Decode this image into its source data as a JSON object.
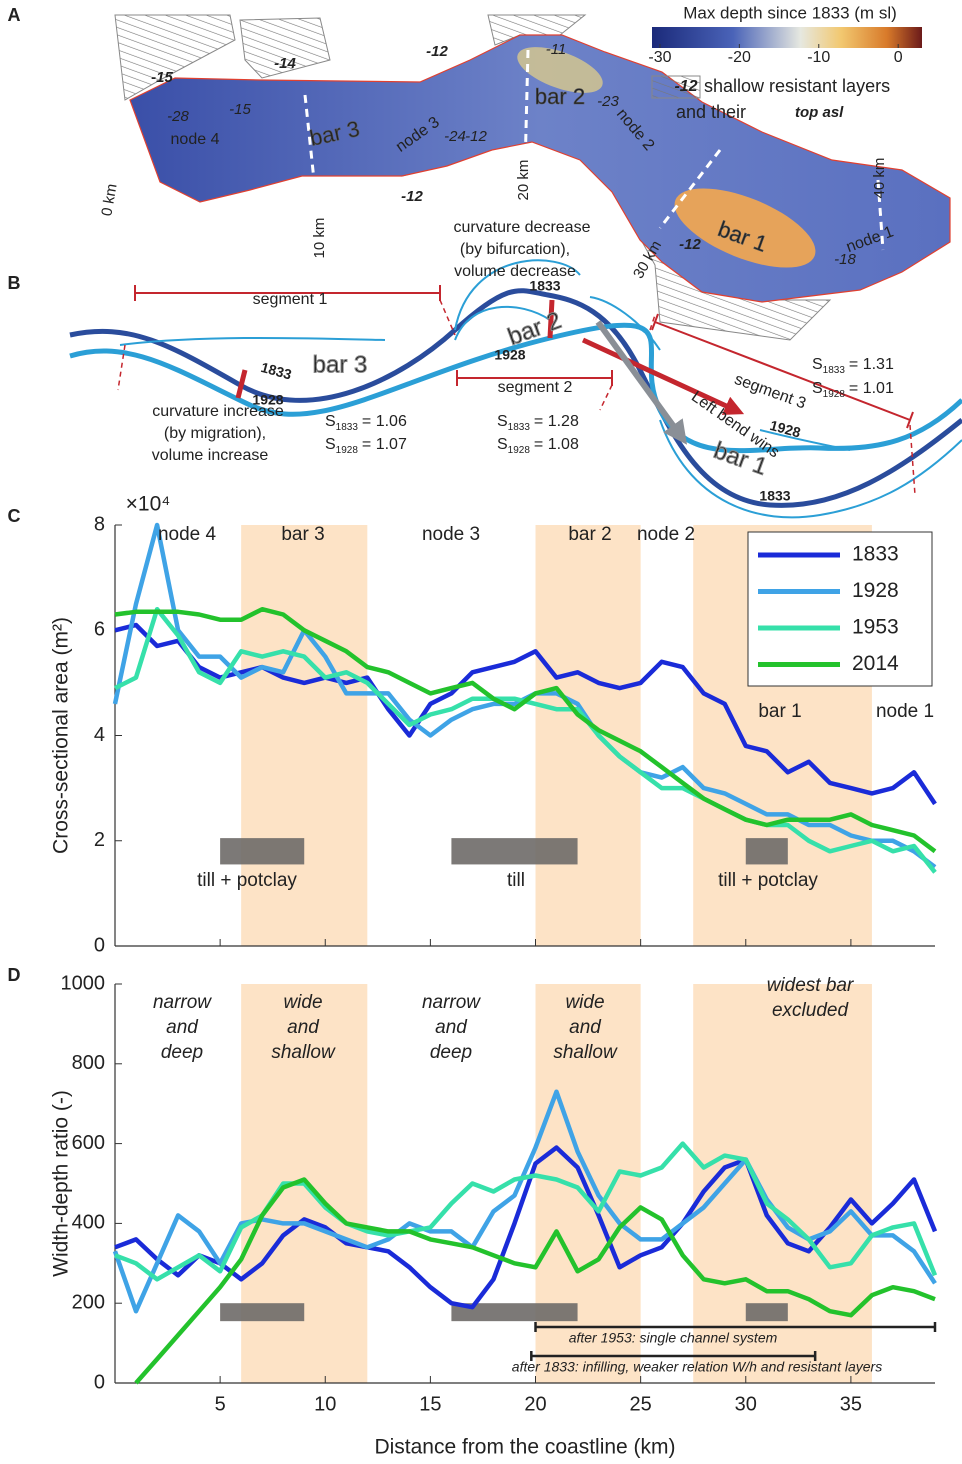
{
  "panel_a": {
    "label": "A",
    "colorbar": {
      "title": "Max depth since 1833 (m sl)",
      "lim": [
        -31,
        3
      ],
      "ticks": [
        -30,
        -20,
        -10,
        0
      ]
    },
    "legend": {
      "sample": "-12",
      "line1": "shallow resistant layers",
      "line2": "and their",
      "line2_em": "top asl"
    },
    "labels": [
      "-15",
      "-14",
      "-12",
      "-12",
      "-12",
      "-28",
      "-15",
      "-24",
      "-12",
      "-11",
      "-23",
      "-18",
      "node 4",
      "bar 3",
      "node 3",
      "bar 2",
      "node 2",
      "bar 1",
      "node 1",
      "0 km",
      "10 km",
      "20 km",
      "30 km",
      "40 km"
    ]
  },
  "panel_b": {
    "label": "B",
    "labels": [
      "segment 1",
      "segment 2",
      "segment 3",
      "bar 3",
      "bar 2",
      "bar 1",
      "1833",
      "1833",
      "1833",
      "1928",
      "1928",
      "1928",
      "curvature decrease",
      "(by bifurcation),",
      "volume decrease",
      "curvature increase",
      "(by migration),",
      "volume increase",
      "Left bend wins"
    ],
    "s_values": [
      {
        "label": "S",
        "sub": "1833",
        "rest": "= 1.06"
      },
      {
        "label": "S",
        "sub": "1928",
        "rest": "= 1.07"
      },
      {
        "label": "S",
        "sub": "1833",
        "rest": "= 1.28"
      },
      {
        "label": "S",
        "sub": "1928",
        "rest": "= 1.08"
      },
      {
        "label": "S",
        "sub": "1833",
        "rest": "= 1.31"
      },
      {
        "label": "S",
        "sub": "1928",
        "rest": "= 1.01"
      }
    ]
  },
  "chart_data": [
    {
      "type": "line",
      "panel_label": "C",
      "ylabel": "Cross-sectional area (m²)",
      "y_multiplier": "×10⁴",
      "x": [
        0,
        1,
        2,
        3,
        4,
        5,
        6,
        7,
        8,
        9,
        10,
        11,
        12,
        13,
        14,
        15,
        16,
        17,
        18,
        19,
        20,
        21,
        22,
        23,
        24,
        25,
        26,
        27,
        28,
        29,
        30,
        31,
        32,
        33,
        34,
        35,
        36,
        37,
        38,
        39
      ],
      "xlim": [
        0,
        39
      ],
      "ylim": [
        0,
        8
      ],
      "yticks": [
        0,
        2,
        4,
        6,
        8
      ],
      "legend": "upper right",
      "bands": [
        [
          6,
          12
        ],
        [
          20,
          25
        ],
        [
          27.5,
          36
        ]
      ],
      "band_color": "#fde3c6",
      "region_labels": [
        "node 4",
        "bar 3",
        "node 3",
        "bar 2",
        "node 2",
        "bar 1",
        "node 1"
      ],
      "layers": [
        {
          "x": [
            5,
            9
          ],
          "y": [
            1.55,
            2.05
          ],
          "label": "till + potclay"
        },
        {
          "x": [
            16,
            22
          ],
          "y": [
            1.55,
            2.05
          ],
          "label": "till"
        },
        {
          "x": [
            30,
            32
          ],
          "y": [
            1.55,
            2.05
          ],
          "label": "till + potclay"
        }
      ],
      "series": [
        {
          "name": "1833",
          "color": "#1a2bd8",
          "values": [
            6.0,
            6.1,
            5.7,
            5.8,
            5.3,
            5.1,
            5.2,
            5.3,
            5.1,
            5.0,
            5.1,
            5.0,
            5.1,
            4.5,
            4.0,
            4.6,
            4.8,
            5.2,
            5.3,
            5.4,
            5.6,
            5.1,
            5.2,
            5.0,
            4.9,
            5.0,
            5.4,
            5.3,
            4.8,
            4.6,
            3.8,
            3.7,
            3.3,
            3.5,
            3.1,
            3.0,
            2.9,
            3.0,
            3.3,
            2.7
          ]
        },
        {
          "name": "1928",
          "color": "#3fa3e6",
          "values": [
            4.6,
            6.5,
            8.0,
            6.0,
            5.5,
            5.5,
            5.1,
            5.3,
            5.2,
            6.0,
            5.5,
            4.8,
            4.8,
            4.8,
            4.3,
            4.0,
            4.3,
            4.5,
            4.6,
            4.6,
            4.8,
            4.8,
            4.6,
            4.0,
            3.6,
            3.3,
            3.2,
            3.4,
            3.0,
            2.9,
            2.7,
            2.5,
            2.5,
            2.3,
            2.3,
            2.1,
            2.0,
            2.0,
            1.8,
            1.5
          ]
        },
        {
          "name": "1953",
          "color": "#36e0aa",
          "values": [
            4.9,
            5.1,
            6.4,
            5.9,
            5.2,
            5.0,
            5.6,
            5.5,
            5.6,
            5.5,
            5.1,
            5.2,
            5.0,
            4.6,
            4.2,
            4.4,
            4.5,
            4.7,
            4.7,
            4.7,
            4.6,
            4.5,
            4.5,
            4.0,
            3.6,
            3.3,
            3.0,
            3.0,
            2.8,
            2.6,
            2.4,
            2.3,
            2.3,
            2.0,
            1.8,
            1.9,
            2.0,
            1.8,
            1.9,
            1.4
          ]
        },
        {
          "name": "2014",
          "color": "#23c22c",
          "values": [
            6.3,
            6.35,
            6.35,
            6.35,
            6.3,
            6.2,
            6.2,
            6.4,
            6.3,
            6.0,
            5.8,
            5.6,
            5.3,
            5.2,
            5.0,
            4.8,
            4.9,
            5.0,
            4.7,
            4.5,
            4.8,
            4.9,
            4.4,
            4.1,
            3.9,
            3.7,
            3.4,
            3.1,
            2.8,
            2.6,
            2.4,
            2.3,
            2.4,
            2.4,
            2.4,
            2.5,
            2.3,
            2.2,
            2.1,
            1.8
          ]
        }
      ]
    },
    {
      "type": "line",
      "panel_label": "D",
      "ylabel": "Width-depth ratio (-)",
      "xlabel": "Distance from the coastline (km)",
      "x": [
        0,
        1,
        2,
        3,
        4,
        5,
        6,
        7,
        8,
        9,
        10,
        11,
        12,
        13,
        14,
        15,
        16,
        17,
        18,
        19,
        20,
        21,
        22,
        23,
        24,
        25,
        26,
        27,
        28,
        29,
        30,
        31,
        32,
        33,
        34,
        35,
        36,
        37,
        38,
        39
      ],
      "xlim": [
        0,
        39
      ],
      "ylim": [
        0,
        1000
      ],
      "xticks": [
        5,
        10,
        15,
        20,
        25,
        30,
        35
      ],
      "yticks": [
        0,
        200,
        400,
        600,
        800,
        1000
      ],
      "bands": [
        [
          6,
          12
        ],
        [
          20,
          25
        ],
        [
          27.5,
          36
        ]
      ],
      "band_color": "#fde3c6",
      "region_labels": [
        [
          "narrow",
          "and",
          "deep"
        ],
        [
          "wide",
          "and",
          "shallow"
        ],
        [
          "narrow",
          "and",
          "deep"
        ],
        [
          "wide",
          "and",
          "shallow"
        ],
        [
          "widest bar",
          "excluded"
        ]
      ],
      "layers": [
        {
          "x": [
            5,
            9
          ],
          "y": [
            155,
            200
          ]
        },
        {
          "x": [
            16,
            22
          ],
          "y": [
            155,
            200
          ]
        },
        {
          "x": [
            30,
            32
          ],
          "y": [
            155,
            200
          ]
        }
      ],
      "brackets": [
        {
          "x": [
            20,
            39
          ],
          "text": "after 1953: single channel system"
        },
        {
          "x": [
            19.8,
            33.3
          ],
          "text": "after 1833: infilling, weaker relation W/h and resistant layers"
        }
      ],
      "series": [
        {
          "name": "1833",
          "color": "#1a2bd8",
          "values": [
            340,
            360,
            310,
            270,
            320,
            300,
            260,
            300,
            370,
            410,
            390,
            350,
            340,
            330,
            290,
            240,
            200,
            190,
            260,
            400,
            550,
            590,
            540,
            420,
            290,
            320,
            340,
            400,
            480,
            540,
            560,
            420,
            350,
            330,
            390,
            460,
            400,
            450,
            510,
            380
          ]
        },
        {
          "name": "1928",
          "color": "#3fa3e6",
          "values": [
            330,
            180,
            300,
            420,
            380,
            300,
            400,
            410,
            400,
            400,
            380,
            360,
            340,
            360,
            400,
            380,
            380,
            340,
            430,
            470,
            590,
            730,
            580,
            470,
            400,
            360,
            360,
            400,
            440,
            500,
            560,
            460,
            390,
            360,
            380,
            430,
            370,
            370,
            330,
            250
          ]
        },
        {
          "name": "1953",
          "color": "#36e0aa",
          "values": [
            320,
            300,
            260,
            290,
            320,
            280,
            390,
            420,
            500,
            500,
            440,
            400,
            380,
            370,
            380,
            390,
            450,
            500,
            480,
            510,
            520,
            510,
            490,
            430,
            530,
            520,
            540,
            600,
            540,
            570,
            560,
            450,
            410,
            360,
            290,
            300,
            370,
            390,
            400,
            270
          ]
        },
        {
          "name": "2014",
          "color": "#23c22c",
          "values": [
            null,
            0,
            60,
            120,
            180,
            240,
            310,
            420,
            490,
            510,
            450,
            400,
            390,
            380,
            380,
            360,
            350,
            340,
            320,
            300,
            290,
            380,
            280,
            310,
            390,
            440,
            410,
            320,
            260,
            250,
            260,
            230,
            230,
            210,
            180,
            170,
            220,
            240,
            230,
            210
          ]
        }
      ]
    }
  ]
}
